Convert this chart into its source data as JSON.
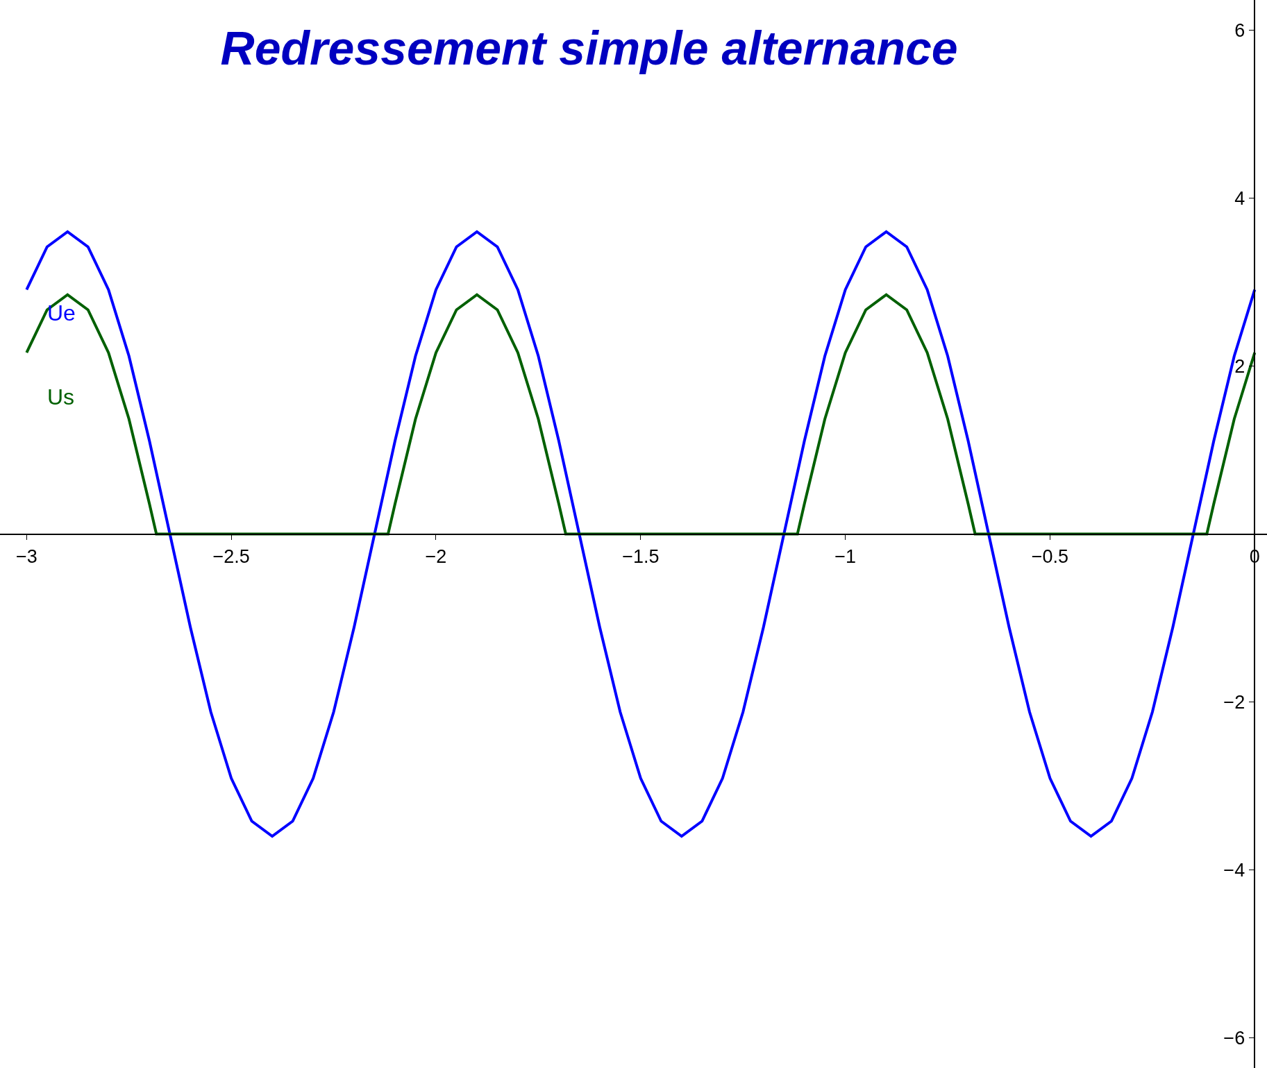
{
  "chart_data": {
    "type": "line",
    "title": "Redressement simple alternance",
    "x": [
      -3,
      -2.95,
      -2.9,
      -2.85,
      -2.8,
      -2.75,
      -2.7,
      -2.65,
      -2.6,
      -2.55,
      -2.5,
      -2.45,
      -2.4,
      -2.35,
      -2.3,
      -2.25,
      -2.2,
      -2.15,
      -2.1,
      -2.05,
      -2,
      -1.95,
      -1.9,
      -1.85,
      -1.8,
      -1.75,
      -1.7,
      -1.65,
      -1.6,
      -1.55,
      -1.5,
      -1.45,
      -1.4,
      -1.35,
      -1.3,
      -1.25,
      -1.2,
      -1.15,
      -1.1,
      -1.05,
      -1,
      -0.95,
      -0.9,
      -0.85,
      -0.8,
      -0.75,
      -0.7,
      -0.65,
      -0.6,
      -0.55,
      -0.5,
      -0.45,
      -0.4,
      -0.35,
      -0.3,
      -0.25,
      -0.2,
      -0.15,
      -0.1,
      -0.05,
      0
    ],
    "series": [
      {
        "name": "Ue",
        "color": "#0000ff",
        "values": [
          2.91,
          3.42,
          3.6,
          3.42,
          2.91,
          2.12,
          1.11,
          0,
          -1.11,
          -2.12,
          -2.91,
          -3.42,
          -3.6,
          -3.42,
          -2.91,
          -2.12,
          -1.11,
          0,
          1.11,
          2.12,
          2.91,
          3.42,
          3.6,
          3.42,
          2.91,
          2.12,
          1.11,
          0,
          -1.11,
          -2.12,
          -2.91,
          -3.42,
          -3.6,
          -3.42,
          -2.91,
          -2.12,
          -1.11,
          0,
          1.11,
          2.12,
          2.91,
          3.42,
          3.6,
          3.42,
          2.91,
          2.12,
          1.11,
          0,
          -1.11,
          -2.12,
          -2.91,
          -3.42,
          -3.6,
          -3.42,
          -2.91,
          -2.12,
          -1.11,
          0,
          1.11,
          2.12,
          2.91
        ]
      },
      {
        "name": "Us",
        "color": "#006000",
        "x": [
          -3,
          -2.95,
          -2.9,
          -2.85,
          -2.8,
          -2.75,
          -2.7,
          -2.683,
          -2.117,
          -2.1,
          -2.05,
          -2,
          -1.95,
          -1.9,
          -1.85,
          -1.8,
          -1.75,
          -1.7,
          -1.683,
          -1.117,
          -1.1,
          -1.05,
          -1,
          -0.95,
          -0.9,
          -0.85,
          -0.8,
          -0.75,
          -0.7,
          -0.683,
          -0.117,
          -0.1,
          -0.05,
          0
        ],
        "values": [
          2.16,
          2.67,
          2.85,
          2.67,
          2.16,
          1.37,
          0.36,
          0,
          0,
          0.36,
          1.37,
          2.16,
          2.67,
          2.85,
          2.67,
          2.16,
          1.37,
          0.36,
          0,
          0,
          0.36,
          1.37,
          2.16,
          2.67,
          2.85,
          2.67,
          2.16,
          1.37,
          0.36,
          0,
          0,
          0.36,
          1.37,
          2.16
        ]
      }
    ],
    "xlim": [
      -3.065,
      0.03
    ],
    "ylim": [
      -6.36,
      6.36
    ],
    "xticks": [
      {
        "value": -3,
        "label": "−3"
      },
      {
        "value": -2.5,
        "label": "−2.5"
      },
      {
        "value": -2,
        "label": "−2"
      },
      {
        "value": -1.5,
        "label": "−1.5"
      },
      {
        "value": -1,
        "label": "−1"
      },
      {
        "value": -0.5,
        "label": "−0.5"
      },
      0
    ],
    "yticks": [
      {
        "value": -6,
        "label": "−6"
      },
      {
        "value": -4,
        "label": "−4"
      },
      {
        "value": -2,
        "label": "−2"
      },
      2,
      4,
      6
    ],
    "grid": false,
    "legend": false,
    "marker": "none",
    "line_style": "solid"
  }
}
